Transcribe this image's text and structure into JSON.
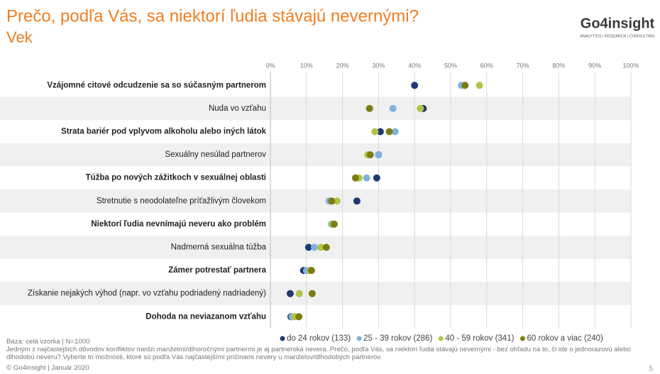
{
  "header": {
    "title": "Prečo, podľa Vás, sa niektorí ľudia stávajú nevernými?",
    "subtitle": "Vek",
    "logo": "Go4insight",
    "logo_tagline": "ANALYTICS | RESEARCH | CONSULTING"
  },
  "chart_data": {
    "type": "dot",
    "categories": [
      "Vzájomné citové odcudzenie sa so súčasným partnerom",
      "Nuda vo vzťahu",
      "Strata bariér pod vplyvom alkoholu alebo iných látok",
      "Sexuálny nesúlad partnerov",
      "Túžba po nových zážitkoch v sexuálnej oblasti",
      "Stretnutie s neodolateľne príťažlivým človekom",
      "Niektorí ľudia nevnímajú neveru ako problém",
      "Nadmerná sexuálna túžba",
      "Zámer potrestať partnera",
      "Získanie nejakých výhod (napr. vo vzťahu podriadený nadriadený)",
      "Dohoda na neviazanom vzťahu"
    ],
    "series": [
      {
        "name": "do 24 rokov (133)",
        "color": "#1f3a73",
        "values": [
          40,
          42.4,
          30.5,
          30,
          29.5,
          24,
          17,
          10.6,
          9.2,
          5.5,
          5.7
        ]
      },
      {
        "name": "25 - 39 rokov (286)",
        "color": "#7fb2de",
        "values": [
          53,
          34,
          34.6,
          30,
          26.7,
          16.3,
          17,
          12.2,
          10,
          8,
          6
        ]
      },
      {
        "name": "40 - 59 rokov (341)",
        "color": "#b4c447",
        "values": [
          58,
          41.6,
          29,
          27,
          24.6,
          18.5,
          17.3,
          14,
          11,
          8,
          6.7
        ]
      },
      {
        "name": "60 rokov a viac (240)",
        "color": "#7b7d12",
        "values": [
          54,
          27.5,
          33,
          27.7,
          23.6,
          17,
          17.7,
          15.5,
          11.4,
          11.6,
          7.9
        ]
      }
    ],
    "xlim": [
      0,
      100
    ],
    "xticks": [
      {
        "value": 0,
        "label": "0%"
      },
      {
        "value": 10,
        "label": "10%"
      },
      {
        "value": 20,
        "label": "20%"
      },
      {
        "value": 30,
        "label": "30%"
      },
      {
        "value": 40,
        "label": "40%"
      },
      {
        "value": 50,
        "label": "50%"
      },
      {
        "value": 60,
        "label": "60%"
      },
      {
        "value": 70,
        "label": "70%"
      },
      {
        "value": 80,
        "label": "80%"
      },
      {
        "value": 90,
        "label": "90%"
      },
      {
        "value": 100,
        "label": "100%"
      }
    ],
    "grid": true
  },
  "footer": {
    "base": "Báza: celá vzorka | N=1000",
    "note": "Jedným z najčastejších dôvodov konfliktov medzi manželmi/dlhoročnými partnermi je aj partnerská nevera. Prečo, podľa Vás, sa niektorí ľudia stávajú nevernými - bez ohľadu na to, či ide o jednorazovú alebo dlhodobú neveru? Vyberte tri možnosti, ktoré sú podľa Vás najčastejšími príčinami nevery u manželov/dlhodobých partnerov.",
    "copyright": "© Go4insight | Január 2020",
    "page_number": "5"
  }
}
